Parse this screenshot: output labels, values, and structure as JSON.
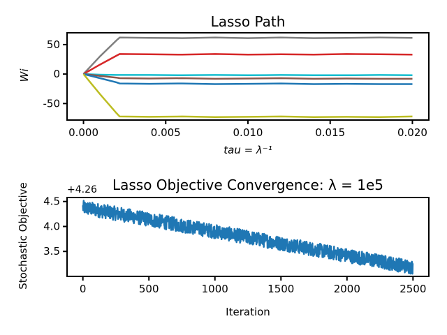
{
  "chart_data": [
    {
      "type": "line",
      "title": "Lasso Path",
      "xlabel": "tau = λ⁻¹",
      "ylabel": "Wi",
      "xlim": [
        -0.001,
        0.021
      ],
      "ylim": [
        -78,
        70
      ],
      "xticks": [
        0.0,
        0.005,
        0.01,
        0.015,
        0.02
      ],
      "xtick_labels": [
        "0.000",
        "0.005",
        "0.010",
        "0.015",
        "0.020"
      ],
      "yticks": [
        50,
        0,
        -50
      ],
      "ytick_labels": [
        "50",
        "0",
        "-50"
      ],
      "grid": false,
      "x": [
        0.0,
        0.001,
        0.002,
        0.0022,
        0.004,
        0.006,
        0.008,
        0.01,
        0.012,
        0.014,
        0.016,
        0.018,
        0.02
      ],
      "series": [
        {
          "color": "#7f7f7f",
          "values": [
            0,
            30,
            57,
            62,
            61.5,
            61,
            62,
            61,
            62,
            61,
            61.5,
            62,
            61.5
          ]
        },
        {
          "color": "#d62728",
          "values": [
            0,
            16,
            31,
            34,
            33.5,
            33,
            34,
            33,
            33.5,
            33,
            34,
            33.5,
            33
          ]
        },
        {
          "color": "#17becf",
          "values": [
            0,
            -1,
            -1.5,
            -1.5,
            -1.5,
            -2,
            -1.5,
            -2,
            -1.5,
            -2,
            -2,
            -1.5,
            -2
          ]
        },
        {
          "color": "#8c564b",
          "values": [
            0,
            -3,
            -6,
            -7,
            -7.5,
            -7,
            -8,
            -7.5,
            -7,
            -8,
            -7.5,
            -8,
            -8
          ]
        },
        {
          "color": "#1f77b4",
          "values": [
            0,
            -7,
            -14,
            -16,
            -16.5,
            -16,
            -17,
            -16.5,
            -16,
            -17,
            -16.5,
            -17,
            -17
          ]
        },
        {
          "color": "#bcbd22",
          "values": [
            0,
            -34,
            -66,
            -72,
            -72.5,
            -72,
            -73,
            -72.5,
            -72,
            -73,
            -72.5,
            -73,
            -72
          ]
        }
      ]
    },
    {
      "type": "line",
      "title": "Lasso Objective Convergence: λ = 1e5",
      "xlabel": "Iteration",
      "ylabel": "Stochastic Objective",
      "offset_text": "+4.26",
      "xlim": [
        -120,
        2620
      ],
      "ylim": [
        3.0,
        4.58
      ],
      "xticks": [
        0,
        500,
        1000,
        1500,
        2000,
        2500
      ],
      "xtick_labels": [
        "0",
        "500",
        "1000",
        "1500",
        "2000",
        "2500"
      ],
      "yticks": [
        4.5,
        4.0,
        3.5
      ],
      "ytick_labels": [
        "4.5",
        "4.0",
        "3.5"
      ],
      "grid": false,
      "series": [
        {
          "color": "#1f77b4",
          "n_points": 2500,
          "start": 4.38,
          "end": 3.18,
          "noise": 0.14
        }
      ]
    }
  ]
}
